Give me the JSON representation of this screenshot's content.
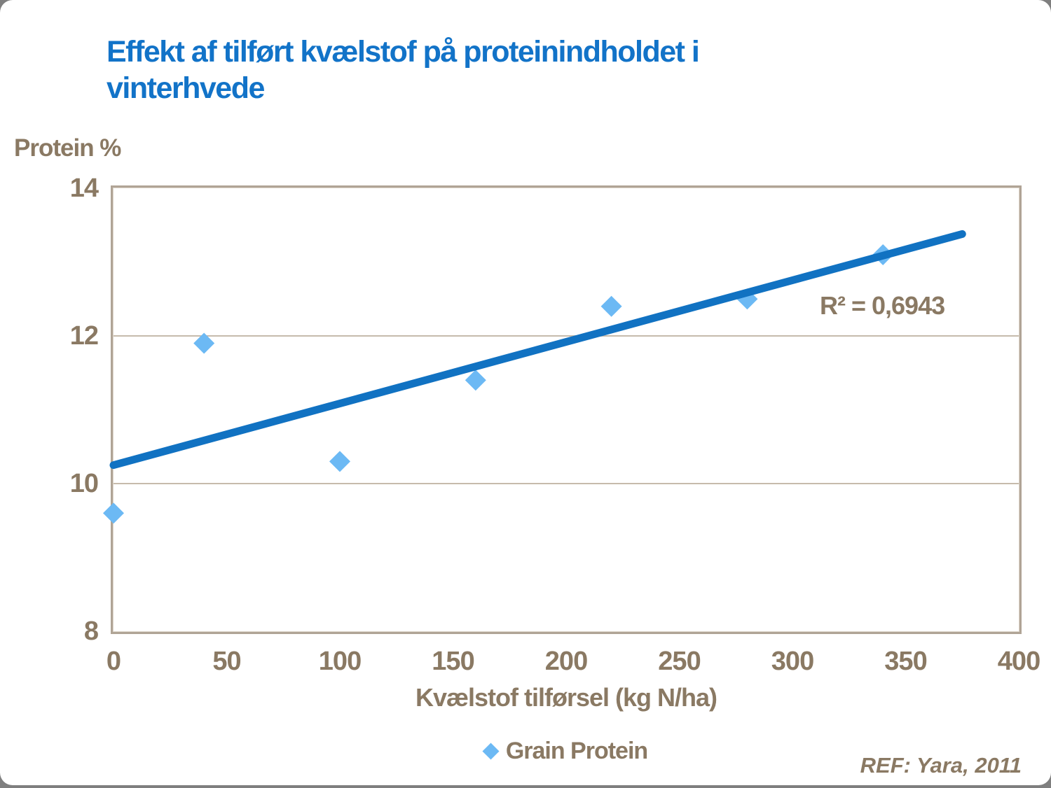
{
  "slide": {
    "title_line1": "Effekt af tilført kvælstof på proteinindholdet i",
    "title_line2": "vinterhvede",
    "ref_text": "REF: Yara, 2011"
  },
  "colors": {
    "title_blue": "#1273C8",
    "line_blue": "#1172C2",
    "marker_blue": "#6CB9F4",
    "text_brown": "#8A7963",
    "gridline": "#C6BBAC",
    "plot_border": "#B0A496",
    "outside_gray": "#7F7F7F"
  },
  "chart_data": {
    "type": "scatter",
    "title": "Effekt af tilført kvælstof på proteinindholdet i vinterhvede",
    "xlabel": "Kvælstof tilførsel (kg N/ha)",
    "ylabel": "Protein %",
    "xlim": [
      0,
      400
    ],
    "ylim": [
      8,
      14
    ],
    "xticks": [
      0,
      50,
      100,
      150,
      200,
      250,
      300,
      350,
      400
    ],
    "yticks": [
      8,
      10,
      12,
      14
    ],
    "gridlines_y": [
      10,
      12
    ],
    "grid": "horizontal only",
    "series": [
      {
        "name": "Grain Protein",
        "marker": "diamond",
        "points": [
          [
            0,
            9.6
          ],
          [
            40,
            11.9
          ],
          [
            100,
            10.3
          ],
          [
            160,
            11.4
          ],
          [
            220,
            12.4
          ],
          [
            280,
            12.5
          ],
          [
            340,
            13.1
          ]
        ]
      }
    ],
    "trendline": {
      "x1": 0,
      "y1": 10.25,
      "x2": 375,
      "y2": 13.38,
      "r_squared_label": "R² = 0,6943"
    },
    "legend": {
      "label": "Grain Protein",
      "position": "bottom center"
    }
  }
}
